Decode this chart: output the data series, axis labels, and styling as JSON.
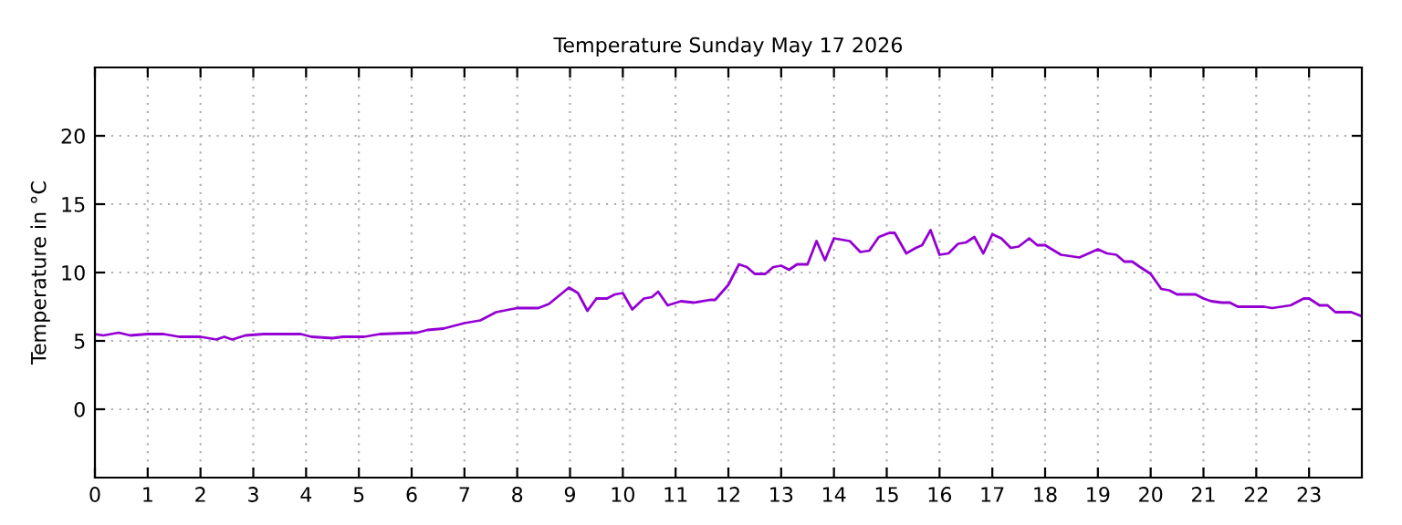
{
  "chart_data": {
    "type": "line",
    "title": "Temperature Sunday May 17 2026",
    "ylabel": "Temperature in °C",
    "xlim": [
      0,
      24
    ],
    "xticks": [
      0,
      1,
      2,
      3,
      4,
      5,
      6,
      7,
      8,
      9,
      10,
      11,
      12,
      13,
      14,
      15,
      16,
      17,
      18,
      19,
      20,
      21,
      22,
      23
    ],
    "ylim": [
      -5,
      25
    ],
    "yticks": [
      0,
      5,
      10,
      15,
      20
    ],
    "grid": true,
    "legend": false,
    "marker": "none",
    "line_style": "solid",
    "series": [
      {
        "color": "#9400d3",
        "x": [
          0,
          0.16,
          0.45,
          0.67,
          1,
          1.3,
          1.6,
          2,
          2.3,
          2.45,
          2.6,
          2.85,
          3.2,
          3.9,
          4.1,
          4.5,
          4.7,
          5.1,
          5.4,
          6.1,
          6.3,
          6.6,
          7,
          7.3,
          7.6,
          7.86,
          8,
          8.4,
          8.6,
          8.98,
          9.15,
          9.33,
          9.5,
          9.7,
          9.85,
          10,
          10.18,
          10.4,
          10.55,
          10.67,
          10.85,
          11.1,
          11.35,
          11.65,
          11.75,
          12,
          12.2,
          12.35,
          12.5,
          12.7,
          12.85,
          13,
          13.15,
          13.3,
          13.5,
          13.67,
          13.83,
          14,
          14.3,
          14.5,
          14.67,
          14.85,
          15.05,
          15.15,
          15.37,
          15.55,
          15.67,
          15.83,
          16,
          16.17,
          16.35,
          16.5,
          16.66,
          16.83,
          17,
          17.17,
          17.35,
          17.5,
          17.7,
          17.85,
          18,
          18.3,
          18.65,
          19,
          19.17,
          19.35,
          19.5,
          19.65,
          19.8,
          20,
          20.2,
          20.35,
          20.5,
          20.85,
          21,
          21.15,
          21.35,
          21.5,
          21.65,
          22.15,
          22.3,
          22.65,
          22.9,
          23,
          23.2,
          23.35,
          23.5,
          23.8,
          24
        ],
        "values": [
          5.5,
          5.4,
          5.6,
          5.4,
          5.5,
          5.5,
          5.3,
          5.3,
          5.1,
          5.3,
          5.1,
          5.4,
          5.5,
          5.5,
          5.3,
          5.2,
          5.3,
          5.3,
          5.5,
          5.6,
          5.8,
          5.9,
          6.3,
          6.5,
          7.1,
          7.3,
          7.4,
          7.4,
          7.7,
          8.9,
          8.5,
          7.2,
          8.1,
          8.1,
          8.4,
          8.5,
          7.3,
          8.1,
          8.2,
          8.6,
          7.6,
          7.9,
          7.8,
          8.0,
          8.0,
          9.1,
          10.6,
          10.4,
          9.9,
          9.9,
          10.4,
          10.5,
          10.2,
          10.6,
          10.6,
          12.3,
          10.9,
          12.5,
          12.3,
          11.5,
          11.6,
          12.6,
          12.9,
          12.9,
          11.4,
          11.8,
          12.0,
          13.1,
          11.3,
          11.4,
          12.1,
          12.2,
          12.6,
          11.4,
          12.8,
          12.5,
          11.8,
          11.9,
          12.5,
          12.0,
          12.0,
          11.3,
          11.1,
          11.7,
          11.4,
          11.3,
          10.8,
          10.8,
          10.4,
          9.9,
          8.8,
          8.7,
          8.4,
          8.4,
          8.1,
          7.9,
          7.8,
          7.8,
          7.5,
          7.5,
          7.4,
          7.6,
          8.1,
          8.1,
          7.6,
          7.6,
          7.1,
          7.1,
          6.8
        ]
      }
    ]
  }
}
